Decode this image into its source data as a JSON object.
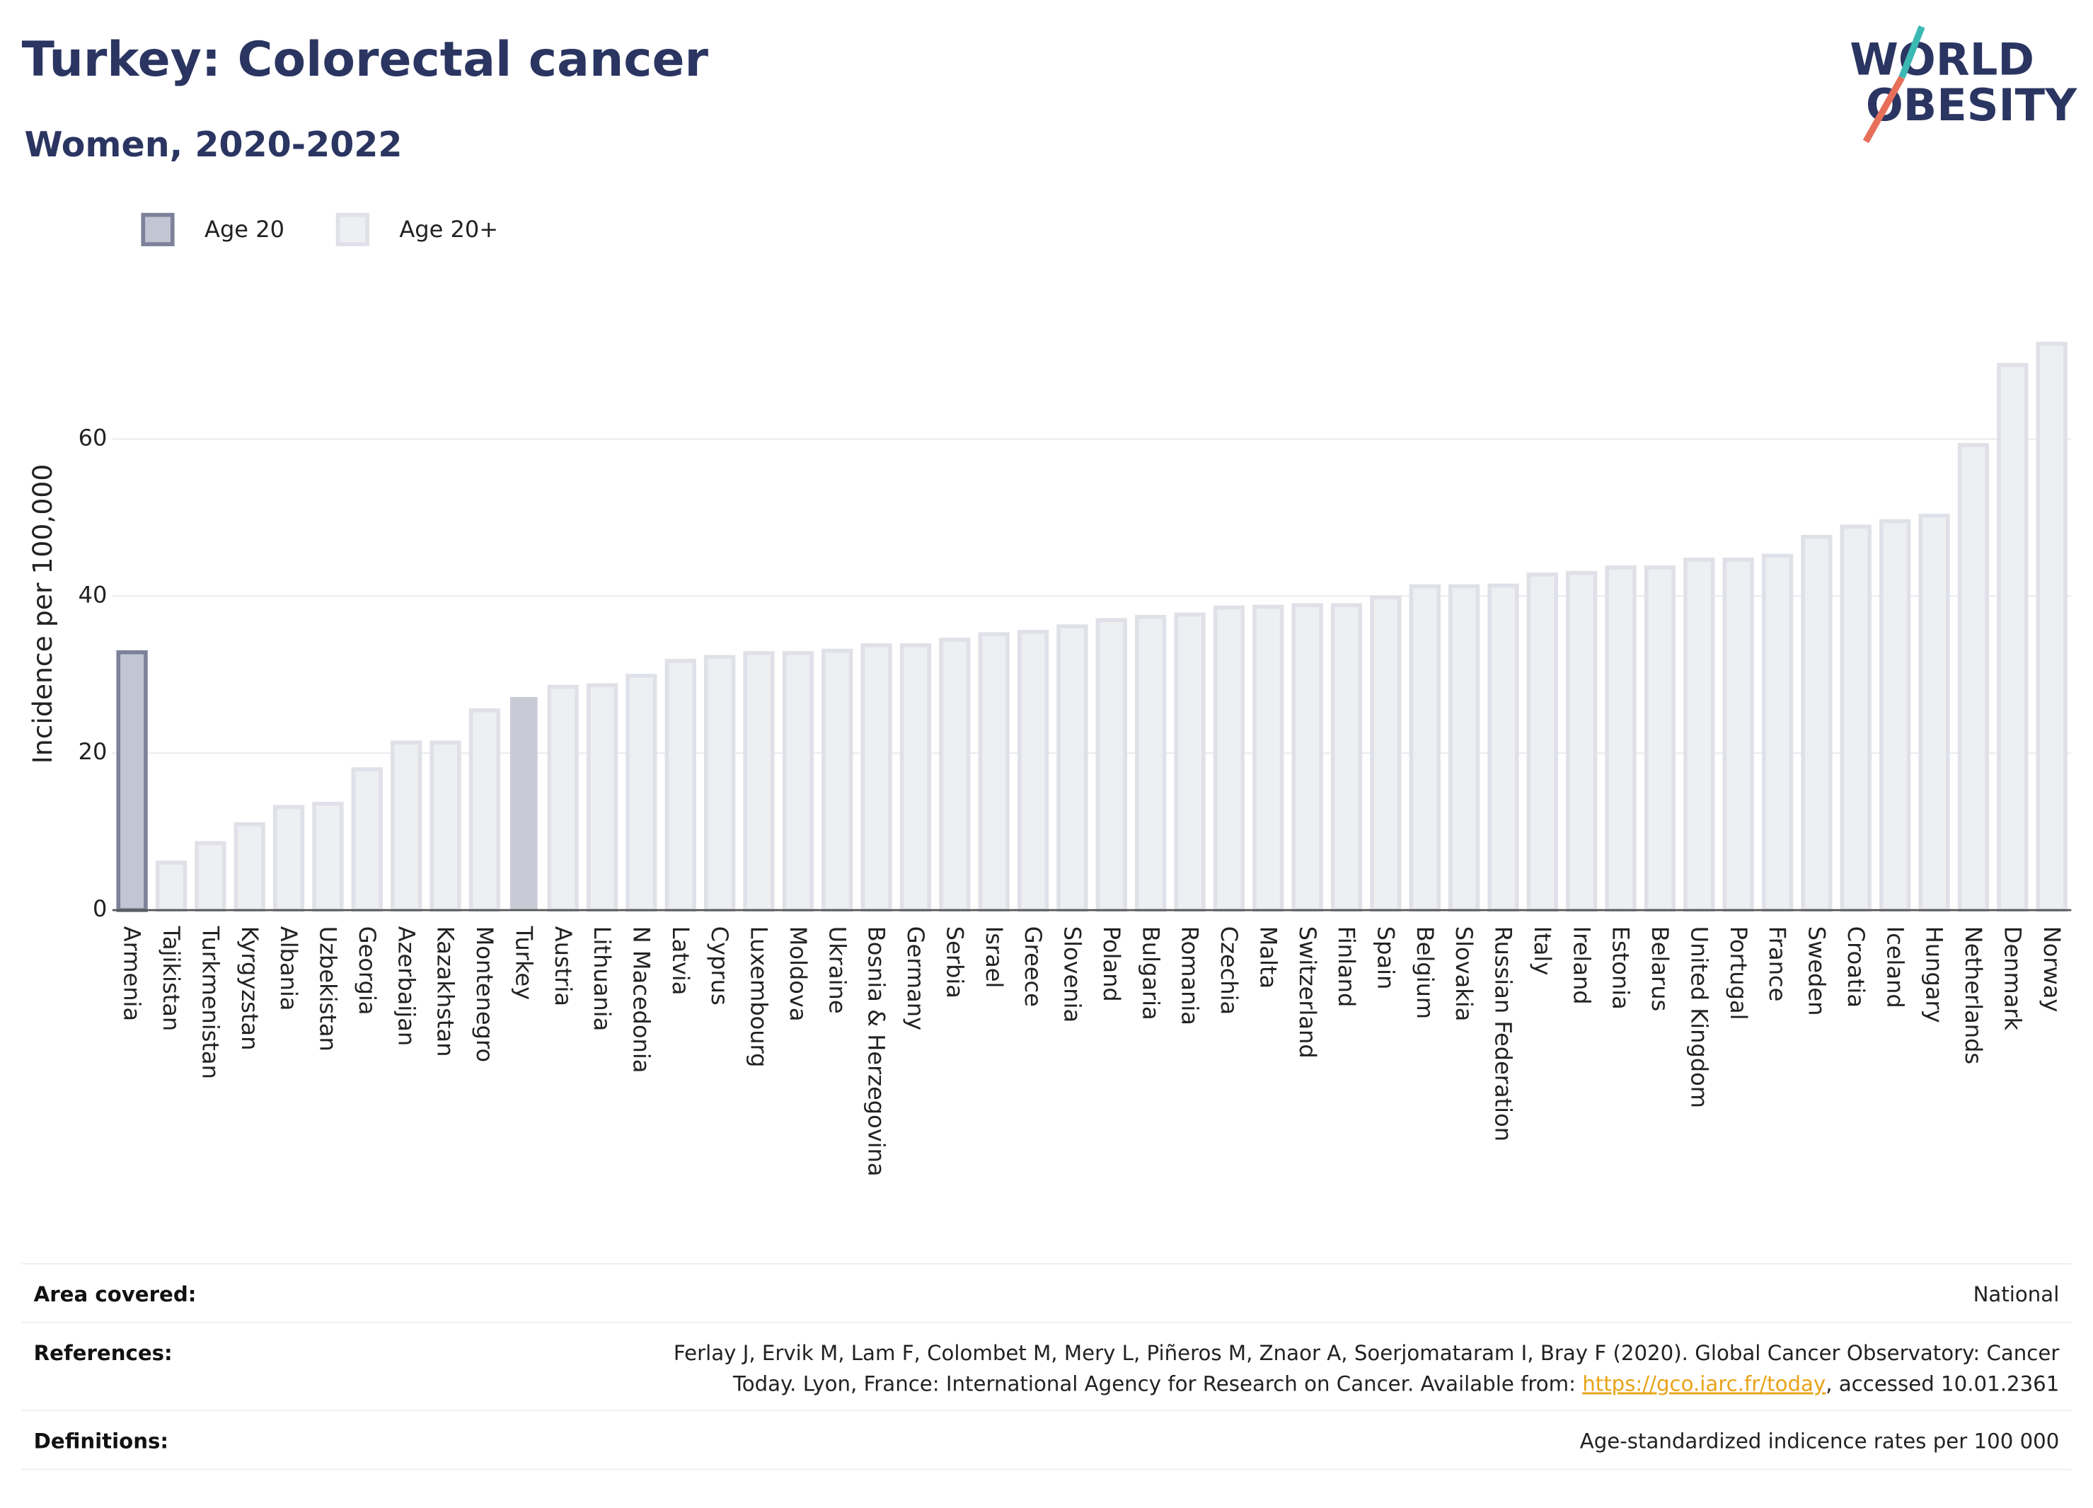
{
  "chart_data": {
    "type": "bar",
    "title": "Turkey: Colorectal cancer",
    "subtitle": "Women, 2020-2022",
    "y_label": "Incidence per 100,000",
    "categories": [
      "Armenia",
      "Tajikistan",
      "Turkmenistan",
      "Kyrgyzstan",
      "Albania",
      "Uzbekistan",
      "Georgia",
      "Azerbaijan",
      "Kazakhstan",
      "Montenegro",
      "Turkey",
      "Austria",
      "Lithuania",
      "N Macedonia",
      "Latvia",
      "Cyprus",
      "Luxembourg",
      "Moldova",
      "Ukraine",
      "Bosnia & Herzegovina",
      "Germany",
      "Serbia",
      "Israel",
      "Greece",
      "Slovenia",
      "Poland",
      "Bulgaria",
      "Romania",
      "Czechia",
      "Malta",
      "Switzerland",
      "Finland",
      "Spain",
      "Belgium",
      "Slovakia",
      "Russian Federation",
      "Italy",
      "Ireland",
      "Estonia",
      "Belarus",
      "United Kingdom",
      "Portugal",
      "France",
      "Sweden",
      "Croatia",
      "Iceland",
      "Hungary",
      "Netherlands",
      "Denmark",
      "Norway"
    ],
    "series": [
      {
        "name": "Age 20",
        "color": "#c2c5d3",
        "stroke": "#7d8199",
        "values": [
          33.1,
          null,
          null,
          null,
          null,
          null,
          null,
          null,
          null,
          null,
          null,
          null,
          null,
          null,
          null,
          null,
          null,
          null,
          null,
          null,
          null,
          null,
          null,
          null,
          null,
          null,
          null,
          null,
          null,
          null,
          null,
          null,
          null,
          null,
          null,
          null,
          null,
          null,
          null,
          null,
          null,
          null,
          null,
          null,
          null,
          null,
          null,
          null,
          null,
          null
        ]
      },
      {
        "name": "Age 20+",
        "color": "#eeeff3",
        "stroke": "#e0e1e8",
        "values": [
          null,
          6.3,
          8.8,
          11.2,
          13.4,
          13.8,
          18.2,
          21.6,
          21.6,
          25.7,
          27.4,
          28.7,
          28.9,
          30.1,
          32.0,
          32.5,
          33.0,
          33.0,
          33.3,
          34.0,
          34.0,
          34.7,
          35.4,
          35.7,
          36.4,
          37.2,
          37.6,
          37.9,
          38.8,
          38.9,
          39.1,
          39.1,
          40.1,
          41.5,
          41.5,
          41.6,
          43.0,
          43.2,
          43.9,
          43.9,
          44.9,
          44.9,
          45.4,
          47.8,
          49.1,
          49.8,
          50.5,
          59.5,
          69.7,
          72.4
        ]
      }
    ],
    "highlight": {
      "category": "Turkey",
      "color": "#c8cad6"
    },
    "ylim": [
      0,
      75
    ],
    "yticks": [
      0,
      20,
      40,
      60
    ],
    "grid": true,
    "legend": "top-left"
  },
  "logo": {
    "line1": "WORLD",
    "line2": "OBESITY"
  },
  "footer": {
    "area": {
      "label": "Area covered:",
      "value": "National"
    },
    "references": {
      "label": "References:",
      "lines": [
        "Ferlay J, Ervik M, Lam F, Colombet M, Mery L, Piñeros M, Znaor A, Soerjomataram I, Bray F (2020). Global Cancer Observatory: Cancer",
        "Today. Lyon, France: International Agency for Research on Cancer. Available from: "
      ],
      "link": "https://gco.iarc.fr/today",
      "after": ", accessed 10.01.2361"
    },
    "definitions": {
      "label": "Definitions:",
      "value": "Age-standardized indicence rates per 100 000"
    }
  }
}
